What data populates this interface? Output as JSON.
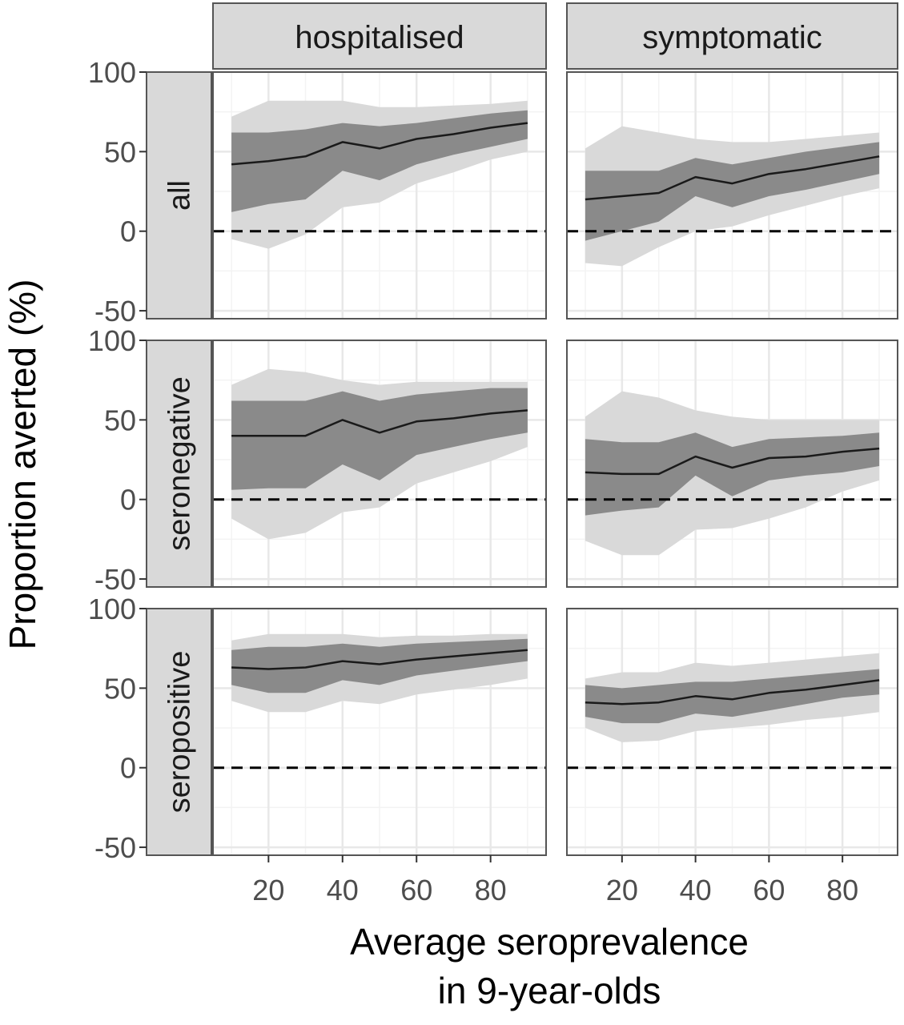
{
  "chart_data": {
    "type": "area",
    "facet_columns": [
      "hospitalised",
      "symptomatic"
    ],
    "facet_rows": [
      "all",
      "seronegative",
      "seropositive"
    ],
    "xlabel": [
      "Average seroprevalence",
      "in 9-year-olds"
    ],
    "ylabel": "Proportion averted (%)",
    "xlim": [
      5,
      95
    ],
    "ylim": [
      -55,
      100
    ],
    "x_ticks": [
      "20",
      "40",
      "60",
      "80"
    ],
    "y_ticks": [
      "-50",
      "0",
      "50",
      "100"
    ],
    "reference_line": 0,
    "grid": true,
    "x": [
      10,
      20,
      30,
      40,
      50,
      60,
      70,
      80,
      90
    ],
    "panels": [
      {
        "row": "all",
        "col": "hospitalised",
        "median": [
          42,
          44,
          47,
          56,
          52,
          58,
          61,
          65,
          68
        ],
        "inner": {
          "lo": [
            12,
            17,
            20,
            38,
            32,
            42,
            48,
            53,
            58
          ],
          "hi": [
            62,
            62,
            64,
            68,
            66,
            68,
            71,
            74,
            76
          ]
        },
        "outer": {
          "lo": [
            -5,
            -11,
            -2,
            15,
            18,
            30,
            37,
            45,
            50
          ],
          "hi": [
            72,
            82,
            82,
            82,
            78,
            78,
            79,
            80,
            82
          ]
        }
      },
      {
        "row": "all",
        "col": "symptomatic",
        "median": [
          20,
          22,
          24,
          34,
          30,
          36,
          39,
          43,
          47
        ],
        "inner": {
          "lo": [
            -6,
            0,
            6,
            22,
            15,
            22,
            26,
            31,
            36
          ],
          "hi": [
            38,
            38,
            38,
            46,
            42,
            46,
            50,
            53,
            56
          ]
        },
        "outer": {
          "lo": [
            -20,
            -22,
            -10,
            0,
            3,
            10,
            16,
            22,
            27
          ],
          "hi": [
            52,
            66,
            62,
            58,
            56,
            56,
            58,
            60,
            62
          ]
        }
      },
      {
        "row": "seronegative",
        "col": "hospitalised",
        "median": [
          40,
          40,
          40,
          50,
          42,
          49,
          51,
          54,
          56
        ],
        "inner": {
          "lo": [
            6,
            7,
            7,
            22,
            12,
            28,
            33,
            38,
            42
          ],
          "hi": [
            62,
            62,
            62,
            68,
            62,
            66,
            68,
            70,
            70
          ]
        },
        "outer": {
          "lo": [
            -12,
            -25,
            -21,
            -8,
            -5,
            10,
            17,
            24,
            33
          ],
          "hi": [
            72,
            82,
            80,
            75,
            72,
            74,
            74,
            74,
            74
          ]
        }
      },
      {
        "row": "seronegative",
        "col": "symptomatic",
        "median": [
          17,
          16,
          16,
          27,
          20,
          26,
          27,
          30,
          32
        ],
        "inner": {
          "lo": [
            -10,
            -7,
            -5,
            15,
            2,
            12,
            15,
            17,
            21
          ],
          "hi": [
            38,
            36,
            36,
            42,
            33,
            38,
            39,
            40,
            42
          ]
        },
        "outer": {
          "lo": [
            -26,
            -35,
            -35,
            -19,
            -18,
            -12,
            -5,
            5,
            12
          ],
          "hi": [
            52,
            68,
            64,
            56,
            52,
            50,
            50,
            50,
            50
          ]
        }
      },
      {
        "row": "seropositive",
        "col": "hospitalised",
        "median": [
          63,
          62,
          63,
          67,
          65,
          68,
          70,
          72,
          74
        ],
        "inner": {
          "lo": [
            52,
            47,
            47,
            55,
            52,
            58,
            61,
            64,
            67
          ],
          "hi": [
            74,
            76,
            76,
            78,
            76,
            78,
            79,
            80,
            81
          ]
        },
        "outer": {
          "lo": [
            42,
            35,
            35,
            42,
            40,
            46,
            49,
            52,
            56
          ],
          "hi": [
            80,
            84,
            84,
            84,
            82,
            83,
            83,
            84,
            84
          ]
        }
      },
      {
        "row": "seropositive",
        "col": "symptomatic",
        "median": [
          41,
          40,
          41,
          45,
          43,
          47,
          49,
          52,
          55
        ],
        "inner": {
          "lo": [
            32,
            28,
            28,
            34,
            32,
            36,
            40,
            44,
            46
          ],
          "hi": [
            52,
            50,
            52,
            54,
            54,
            56,
            58,
            60,
            62
          ]
        },
        "outer": {
          "lo": [
            25,
            16,
            17,
            23,
            25,
            27,
            30,
            32,
            35
          ],
          "hi": [
            56,
            60,
            60,
            66,
            64,
            66,
            68,
            70,
            72
          ]
        }
      }
    ],
    "colors": {
      "outer_band": "#d9d9d9",
      "inner_band": "#8a8a8a",
      "median_line": "#1a1a1a",
      "panel_border": "#555555",
      "strip_fill": "#d9d9d9",
      "grid_major": "#e8e8e8",
      "grid_minor": "#f3f3f3",
      "reference_line": "#000000"
    }
  }
}
